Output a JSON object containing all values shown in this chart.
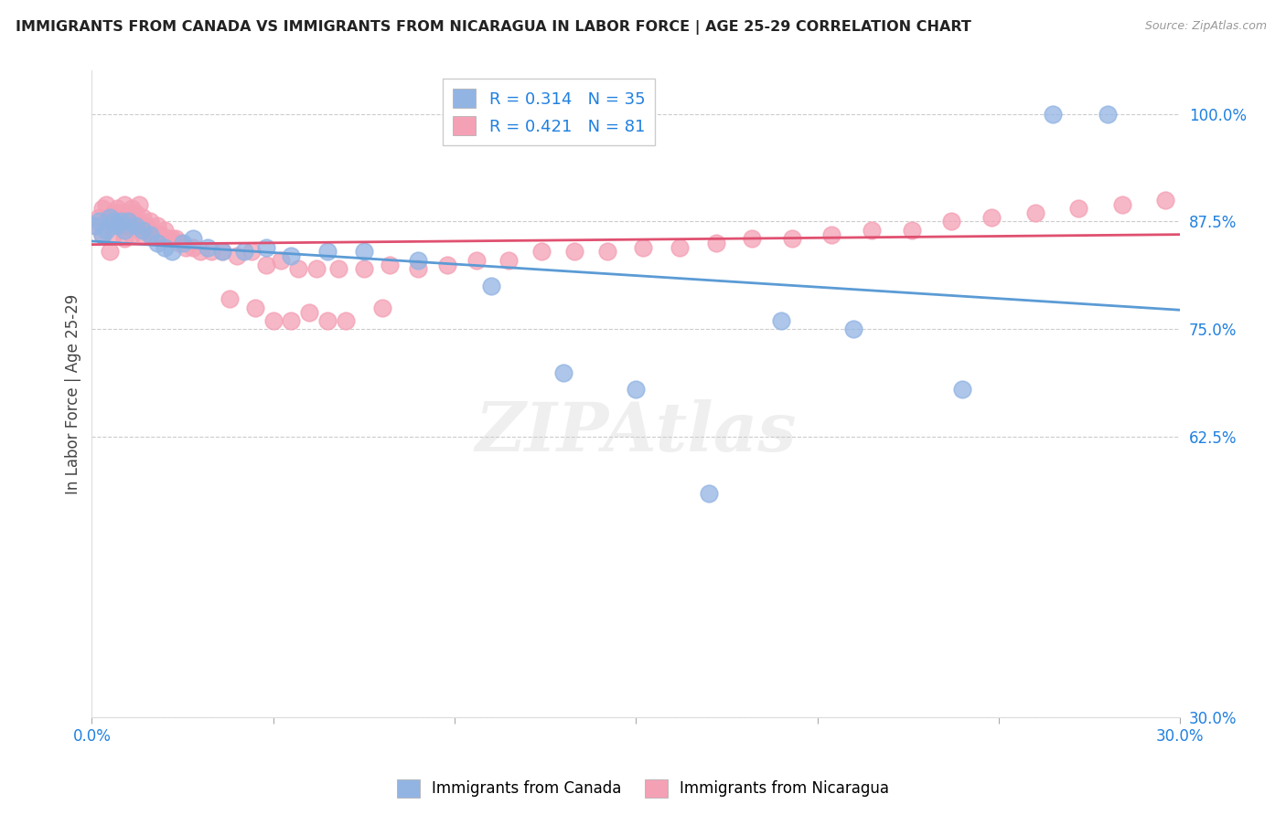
{
  "title": "IMMIGRANTS FROM CANADA VS IMMIGRANTS FROM NICARAGUA IN LABOR FORCE | AGE 25-29 CORRELATION CHART",
  "source": "Source: ZipAtlas.com",
  "ylabel": "In Labor Force | Age 25-29",
  "xlim": [
    0.0,
    0.3
  ],
  "ylim": [
    0.3,
    1.05
  ],
  "xticks": [
    0.0,
    0.05,
    0.1,
    0.15,
    0.2,
    0.25,
    0.3
  ],
  "xticklabels": [
    "0.0%",
    "",
    "",
    "",
    "",
    "",
    "30.0%"
  ],
  "yticks": [
    0.3,
    0.625,
    0.75,
    0.875,
    1.0
  ],
  "yticklabels": [
    "30.0%",
    "62.5%",
    "75.0%",
    "87.5%",
    "100.0%"
  ],
  "canada_color": "#92b4e3",
  "nicaragua_color": "#f4a0b5",
  "canada_line_color": "#5b9bd5",
  "nicaragua_line_color": "#e05070",
  "canada_R": 0.314,
  "canada_N": 35,
  "nicaragua_R": 0.421,
  "nicaragua_N": 81,
  "legend_label_canada": "Immigrants from Canada",
  "legend_label_nicaragua": "Immigrants from Nicaragua",
  "watermark": "ZIPAtlas",
  "canada_x": [
    0.001,
    0.002,
    0.003,
    0.004,
    0.005,
    0.006,
    0.007,
    0.008,
    0.009,
    0.01,
    0.012,
    0.014,
    0.016,
    0.018,
    0.02,
    0.022,
    0.025,
    0.028,
    0.032,
    0.036,
    0.042,
    0.048,
    0.055,
    0.065,
    0.075,
    0.09,
    0.11,
    0.13,
    0.15,
    0.17,
    0.19,
    0.21,
    0.24,
    0.265,
    0.28
  ],
  "canada_y": [
    0.87,
    0.875,
    0.86,
    0.865,
    0.88,
    0.875,
    0.87,
    0.875,
    0.865,
    0.875,
    0.87,
    0.865,
    0.86,
    0.85,
    0.845,
    0.84,
    0.85,
    0.855,
    0.845,
    0.84,
    0.84,
    0.845,
    0.835,
    0.84,
    0.84,
    0.83,
    0.8,
    0.7,
    0.68,
    0.56,
    0.76,
    0.75,
    0.68,
    1.0,
    1.0
  ],
  "nicaragua_x": [
    0.001,
    0.002,
    0.003,
    0.003,
    0.004,
    0.005,
    0.005,
    0.006,
    0.006,
    0.007,
    0.007,
    0.008,
    0.008,
    0.009,
    0.009,
    0.01,
    0.01,
    0.011,
    0.011,
    0.012,
    0.012,
    0.013,
    0.013,
    0.014,
    0.014,
    0.015,
    0.015,
    0.016,
    0.017,
    0.018,
    0.019,
    0.02,
    0.021,
    0.022,
    0.023,
    0.024,
    0.026,
    0.028,
    0.03,
    0.033,
    0.036,
    0.04,
    0.044,
    0.048,
    0.052,
    0.057,
    0.062,
    0.068,
    0.075,
    0.082,
    0.09,
    0.098,
    0.106,
    0.115,
    0.124,
    0.133,
    0.142,
    0.152,
    0.162,
    0.172,
    0.182,
    0.193,
    0.204,
    0.215,
    0.226,
    0.237,
    0.248,
    0.26,
    0.272,
    0.284,
    0.296,
    0.308,
    0.038,
    0.045,
    0.05,
    0.055,
    0.06,
    0.065,
    0.07,
    0.08,
    0.005
  ],
  "nicaragua_y": [
    0.87,
    0.88,
    0.89,
    0.86,
    0.895,
    0.88,
    0.875,
    0.885,
    0.86,
    0.89,
    0.875,
    0.885,
    0.87,
    0.895,
    0.855,
    0.885,
    0.87,
    0.89,
    0.86,
    0.875,
    0.885,
    0.87,
    0.895,
    0.86,
    0.88,
    0.87,
    0.865,
    0.875,
    0.86,
    0.87,
    0.86,
    0.865,
    0.855,
    0.855,
    0.855,
    0.85,
    0.845,
    0.845,
    0.84,
    0.84,
    0.84,
    0.835,
    0.84,
    0.825,
    0.83,
    0.82,
    0.82,
    0.82,
    0.82,
    0.825,
    0.82,
    0.825,
    0.83,
    0.83,
    0.84,
    0.84,
    0.84,
    0.845,
    0.845,
    0.85,
    0.855,
    0.855,
    0.86,
    0.865,
    0.865,
    0.875,
    0.88,
    0.885,
    0.89,
    0.895,
    0.9,
    0.905,
    0.785,
    0.775,
    0.76,
    0.76,
    0.77,
    0.76,
    0.76,
    0.775,
    0.84
  ]
}
